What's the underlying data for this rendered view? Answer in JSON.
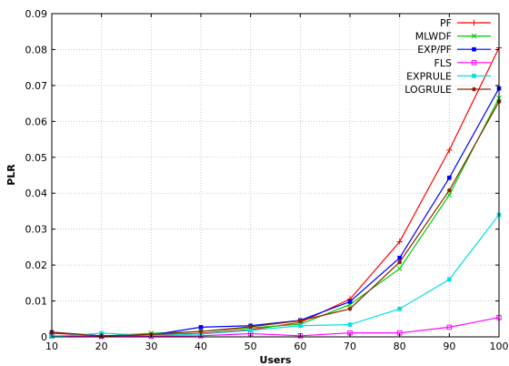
{
  "chart_data": {
    "type": "line",
    "title": "",
    "xlabel": "Users",
    "ylabel": "PLR",
    "x": [
      10,
      20,
      30,
      40,
      50,
      60,
      70,
      80,
      90,
      100
    ],
    "xlim": [
      10,
      100
    ],
    "ylim": [
      0,
      0.09
    ],
    "xticks": [
      10,
      20,
      30,
      40,
      50,
      60,
      70,
      80,
      90,
      100
    ],
    "yticks": [
      0,
      0.01,
      0.02,
      0.03,
      0.04,
      0.05,
      0.06,
      0.07,
      0.08,
      0.09
    ],
    "ytick_labels": [
      "0",
      "0.01",
      "0.02",
      "0.03",
      "0.04",
      "0.05",
      "0.06",
      "0.07",
      "0.08",
      "0.09"
    ],
    "grid": true,
    "legend_position": "top-right",
    "series": [
      {
        "name": "PF",
        "color": "#ff0000",
        "marker": "plus",
        "values": [
          0.001,
          0.0003,
          0.0005,
          0.001,
          0.002,
          0.004,
          0.0105,
          0.0265,
          0.052,
          0.0805
        ]
      },
      {
        "name": "MLWDF",
        "color": "#00cc00",
        "marker": "x",
        "values": [
          0.0003,
          0.0002,
          0.001,
          0.0015,
          0.0025,
          0.0035,
          0.009,
          0.019,
          0.0395,
          0.0665
        ]
      },
      {
        "name": "EXP/PF",
        "color": "#0000ff",
        "marker": "square-filled",
        "values": [
          0.0013,
          0.0003,
          0.0005,
          0.0027,
          0.0031,
          0.0046,
          0.0098,
          0.022,
          0.0443,
          0.0692
        ]
      },
      {
        "name": "FLS",
        "color": "#ff00ff",
        "marker": "square-open",
        "values": [
          0.0002,
          0.0001,
          0.0002,
          0.0003,
          0.0009,
          0.0003,
          0.0011,
          0.0011,
          0.0027,
          0.0054
        ]
      },
      {
        "name": "EXPRULE",
        "color": "#00e0e0",
        "marker": "square-filled",
        "values": [
          0.0001,
          0.001,
          0.0004,
          0.0008,
          0.0018,
          0.0031,
          0.0034,
          0.0078,
          0.016,
          0.034
        ]
      },
      {
        "name": "LOGRULE",
        "color": "#8b2500",
        "marker": "circle-filled",
        "values": [
          0.0013,
          0.0002,
          0.0007,
          0.0015,
          0.0028,
          0.0045,
          0.0078,
          0.0208,
          0.0408,
          0.0655
        ]
      }
    ]
  }
}
